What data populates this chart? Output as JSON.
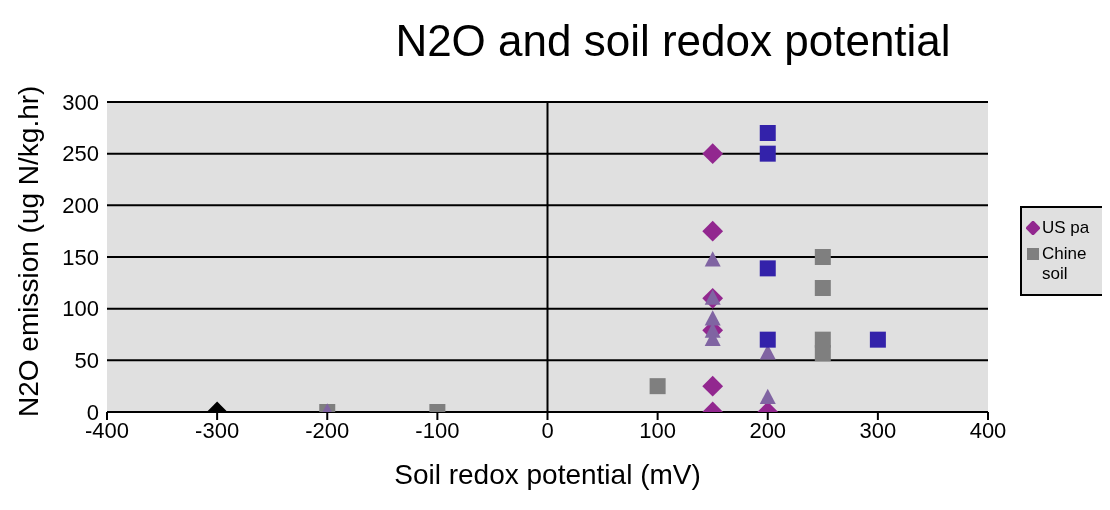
{
  "chart_data": {
    "type": "scatter",
    "title": "N2O and soil redox potential",
    "xlabel": "Soil redox potential (mV)",
    "ylabel": "N2O emission (ug N/kg.hr)",
    "xlim": [
      -400,
      400
    ],
    "xticks": [
      -400,
      -300,
      -200,
      -100,
      0,
      100,
      200,
      300,
      400
    ],
    "ylim": [
      0,
      300
    ],
    "yticks": [
      0,
      50,
      100,
      150,
      200,
      250,
      300
    ],
    "grid": "y",
    "legend": "right",
    "ref_lines": [
      {
        "axis": "x",
        "value": 0,
        "color": "#000000"
      }
    ],
    "series": [
      {
        "name": "US pa",
        "color": "#92278f",
        "marker": "diamond",
        "x": [
          150,
          150,
          150,
          150,
          150,
          150,
          200
        ],
        "values": [
          250,
          175,
          110,
          79,
          25,
          0,
          0
        ]
      },
      {
        "name": "Chine soil",
        "color": "#7f7f7f",
        "marker": "square",
        "x": [
          250,
          250,
          250,
          250,
          100,
          -200,
          -100
        ],
        "values": [
          150,
          120,
          70,
          57,
          25,
          0,
          0
        ]
      },
      {
        "color": "#8064a2",
        "marker": "triangle",
        "x": [
          150,
          150,
          150,
          150,
          150,
          200,
          200,
          -200
        ],
        "values": [
          147,
          110,
          90,
          78,
          70,
          57,
          14,
          0
        ]
      },
      {
        "color": "#3322aa",
        "marker": "square",
        "x": [
          200,
          200,
          200,
          200,
          300
        ],
        "values": [
          270,
          250,
          139,
          70,
          70
        ]
      },
      {
        "color": "#000000",
        "marker": "diamond",
        "x": [
          -300
        ],
        "values": [
          0
        ]
      }
    ]
  }
}
